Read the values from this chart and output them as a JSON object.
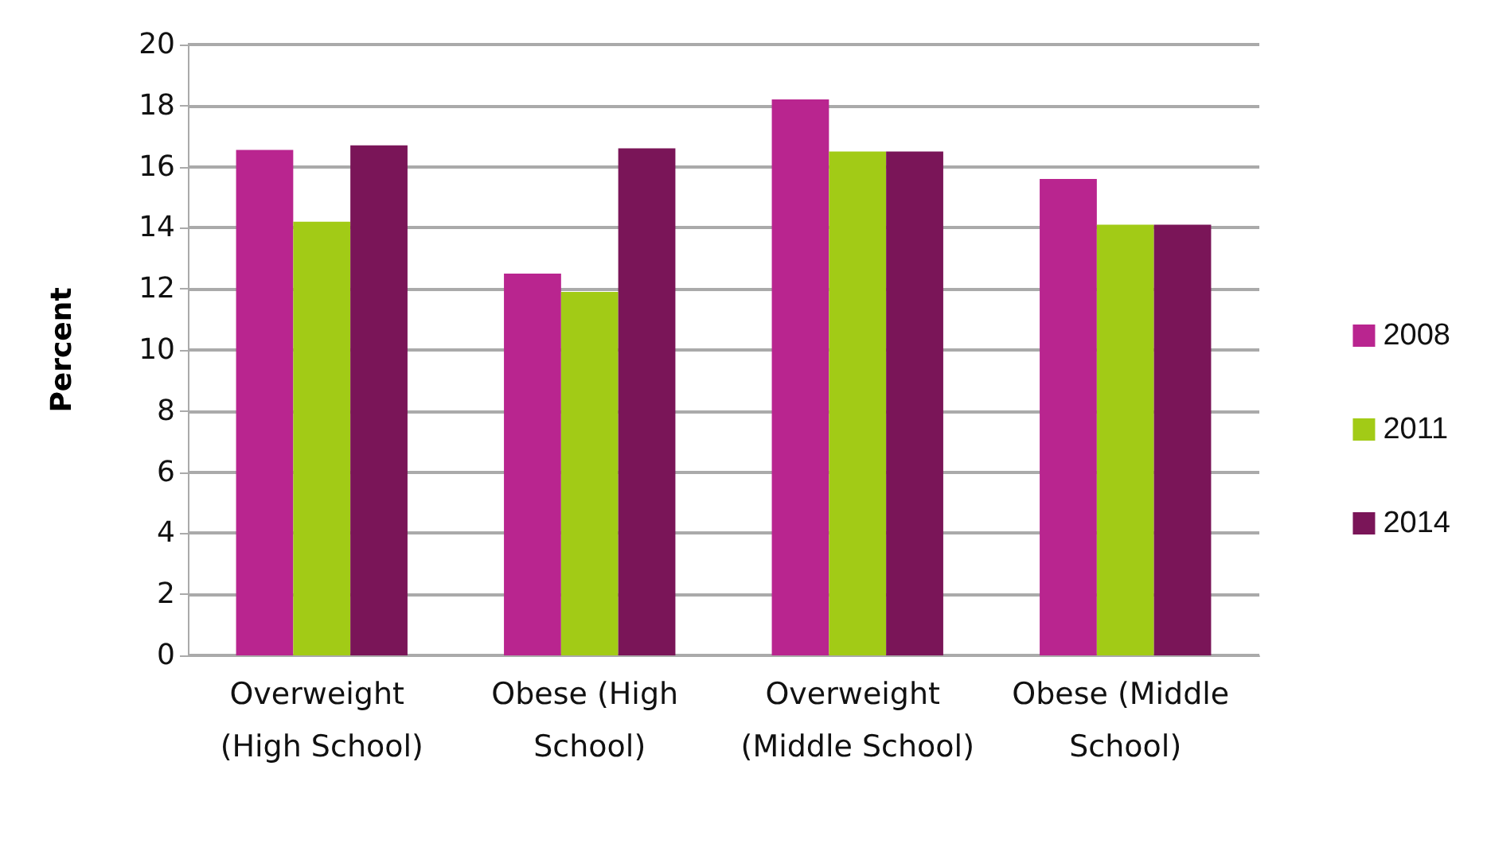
{
  "chart_data": {
    "type": "bar",
    "ylabel": "Percent",
    "categories": [
      "Overweight (High School)",
      "Obese (High School)",
      "Overweight (Middle School)",
      "Obese (Middle School)"
    ],
    "series": [
      {
        "name": "2008",
        "color": "#b9258f",
        "values": [
          16.55,
          12.5,
          18.2,
          15.6
        ]
      },
      {
        "name": "2011",
        "color": "#a2cb16",
        "values": [
          14.2,
          11.9,
          16.5,
          14.1
        ]
      },
      {
        "name": "2014",
        "color": "#7a1558",
        "values": [
          16.7,
          16.6,
          16.5,
          14.1
        ]
      }
    ],
    "ylim": [
      0,
      20
    ],
    "yticks": [
      0,
      2,
      4,
      6,
      8,
      10,
      12,
      14,
      16,
      18,
      20
    ],
    "grid": "y",
    "legend": "right"
  }
}
